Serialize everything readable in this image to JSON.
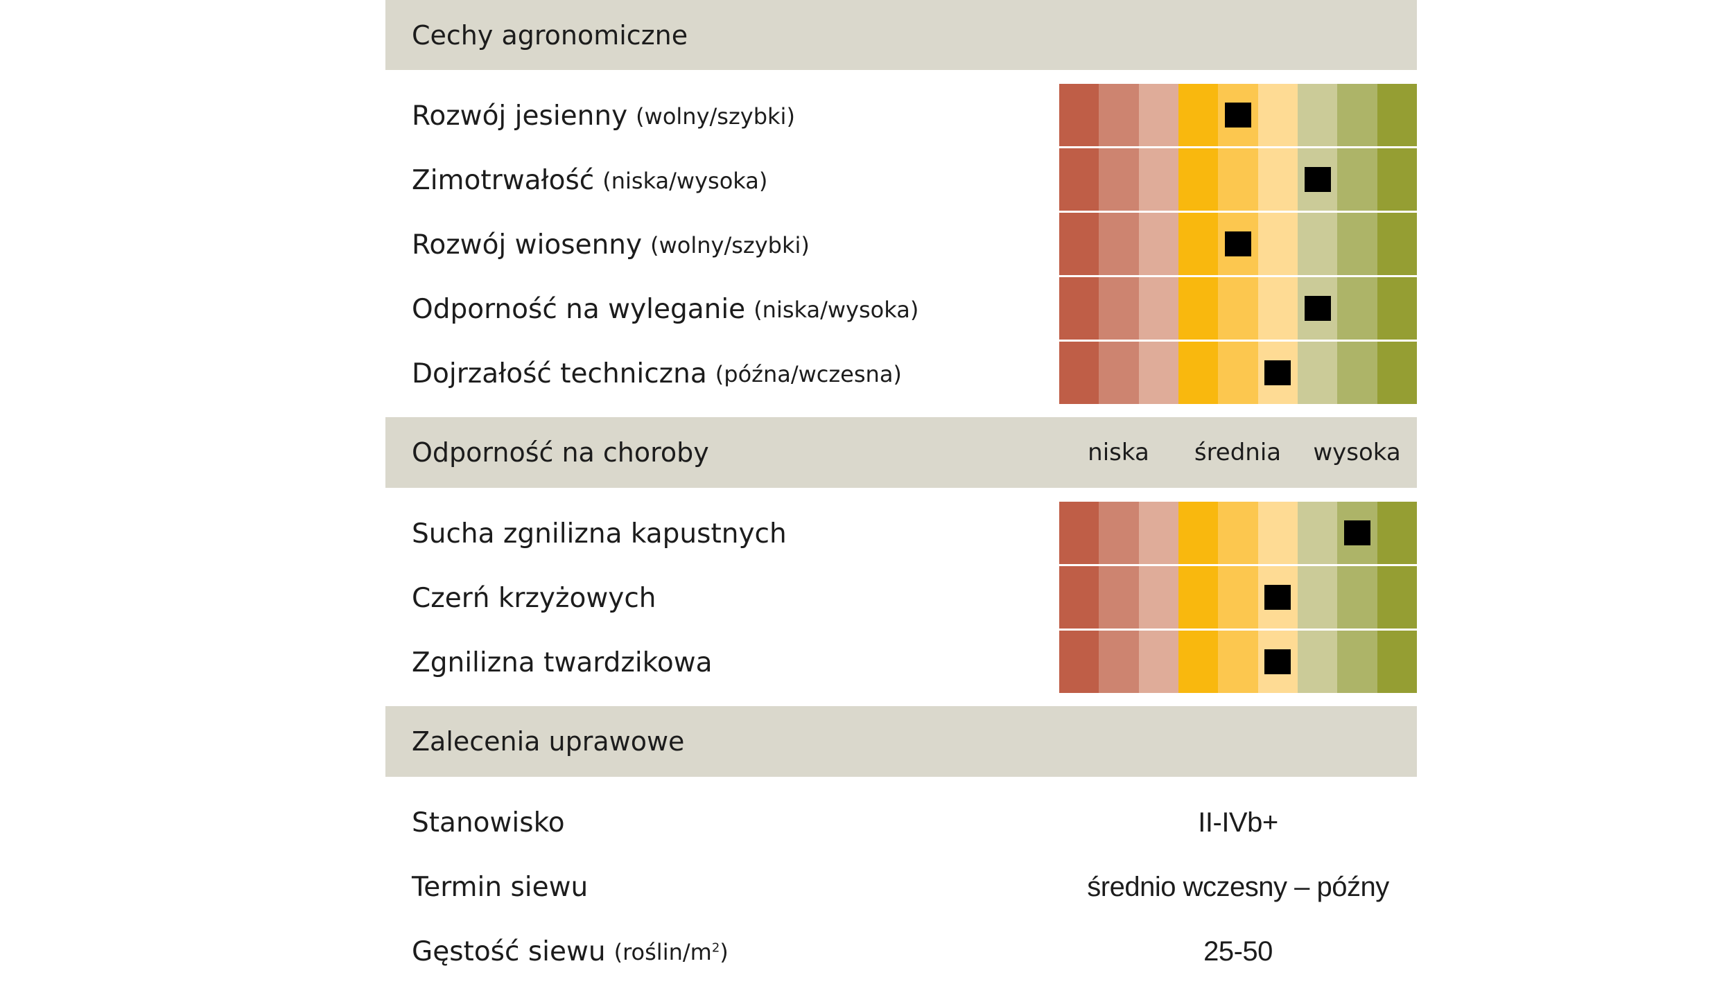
{
  "sections": {
    "agronomic": {
      "title": "Cechy agronomiczne"
    },
    "disease": {
      "title": "Odporność na choroby",
      "scale_labels": [
        "niska",
        "średnia",
        "wysoka"
      ]
    },
    "cultivation": {
      "title": "Zalecenia uprawowe"
    }
  },
  "scale_colors": [
    "#bf5e47",
    "#cd8470",
    "#dfac99",
    "#f9b80e",
    "#fcc74f",
    "#fedb94",
    "#cbcb98",
    "#adb468",
    "#959e33"
  ],
  "agronomic_traits": [
    {
      "name": "Rozwój jesienny",
      "hint": "(wolny/szybki)",
      "score": 5
    },
    {
      "name": "Zimotrwałość",
      "hint": "(niska/wysoka)",
      "score": 7
    },
    {
      "name": "Rozwój wiosenny",
      "hint": "(wolny/szybki)",
      "score": 5
    },
    {
      "name": "Odporność na wyleganie",
      "hint": "(niska/wysoka)",
      "score": 7
    },
    {
      "name": "Dojrzałość techniczna",
      "hint": "(późna/wczesna)",
      "score": 6
    }
  ],
  "disease_resistance": [
    {
      "name": "Sucha zgnilizna kapustnych",
      "score": 8
    },
    {
      "name": "Czerń krzyżowych",
      "score": 6
    },
    {
      "name": "Zgnilizna twardzikowa",
      "score": 6
    }
  ],
  "recommendations": [
    {
      "name": "Stanowisko",
      "hint": "",
      "value": "II-IVb+"
    },
    {
      "name": "Termin siewu",
      "hint": "",
      "value": "średnio wczesny – późny"
    },
    {
      "name": "Gęstość siewu",
      "hint": "(roślin/m",
      "hint_sup": "2",
      "hint_end": ")",
      "value": "25-50"
    }
  ]
}
